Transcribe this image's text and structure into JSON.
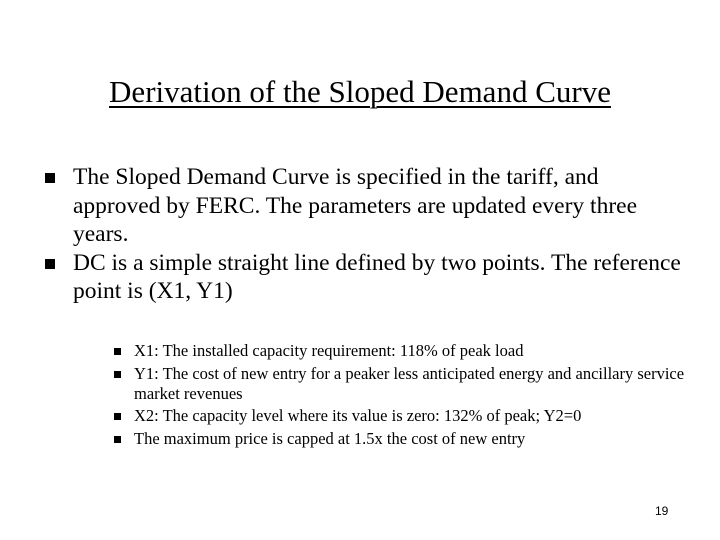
{
  "title": "Derivation of the Sloped Demand Curve",
  "bullets": [
    {
      "text": "The Sloped Demand Curve is specified in the tariff, and approved by FERC. The parameters are updated every three years."
    },
    {
      "text": "DC is a simple straight line defined by two points. The reference point is (X1, Y1)"
    }
  ],
  "sub_bullets": [
    {
      "text": "X1: The installed capacity requirement: 118% of peak load"
    },
    {
      "text": "Y1: The cost of new entry for a peaker less anticipated energy and ancillary service market revenues"
    },
    {
      "text": "X2: The capacity level where its value is zero: 132% of peak; Y2=0"
    },
    {
      "text": "The maximum price is capped at 1.5x the cost of new entry"
    }
  ],
  "page_number": "19"
}
